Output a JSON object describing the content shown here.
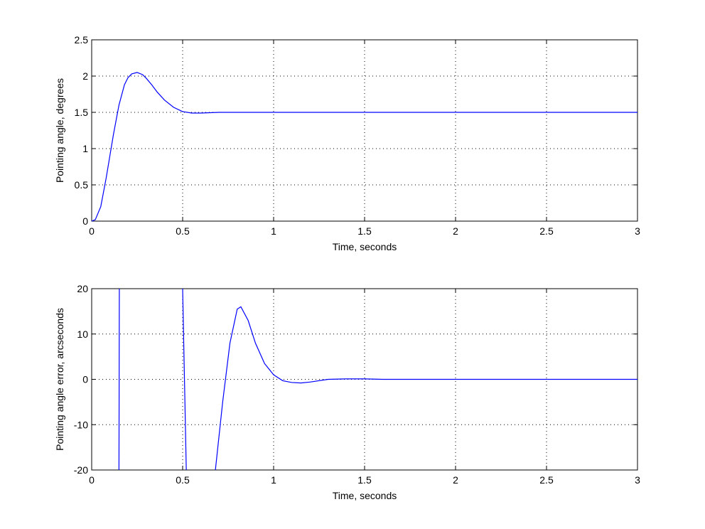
{
  "chart_data": [
    {
      "type": "line",
      "xlabel": "Time, seconds",
      "ylabel": "Pointing angle, degrees",
      "xlim": [
        0,
        3
      ],
      "ylim": [
        0,
        2.5
      ],
      "xticks": [
        0,
        0.5,
        1,
        1.5,
        2,
        2.5,
        3
      ],
      "yticks": [
        0,
        0.5,
        1,
        1.5,
        2,
        2.5
      ],
      "grid": true,
      "x": [
        0,
        0.02,
        0.05,
        0.08,
        0.1,
        0.12,
        0.15,
        0.18,
        0.2,
        0.22,
        0.25,
        0.28,
        0.3,
        0.33,
        0.36,
        0.4,
        0.45,
        0.5,
        0.55,
        0.6,
        0.7,
        0.8,
        1,
        1.5,
        2,
        2.5,
        3
      ],
      "series": [
        {
          "color": "#0000ff",
          "values": [
            0,
            0.02,
            0.2,
            0.6,
            0.9,
            1.2,
            1.6,
            1.88,
            1.98,
            2.03,
            2.05,
            2.02,
            1.97,
            1.88,
            1.78,
            1.67,
            1.57,
            1.51,
            1.49,
            1.49,
            1.5,
            1.5,
            1.5,
            1.5,
            1.5,
            1.5,
            1.5
          ]
        }
      ]
    },
    {
      "type": "line",
      "xlabel": "Time, seconds",
      "ylabel": "Pointing angle error, arcseconds",
      "xlim": [
        0,
        3
      ],
      "ylim": [
        -20,
        20
      ],
      "xticks": [
        0,
        0.5,
        1,
        1.5,
        2,
        2.5,
        3
      ],
      "yticks": [
        -20,
        -10,
        0,
        10,
        20
      ],
      "grid": true,
      "x": [
        0.15,
        0.152,
        0.3,
        0.5,
        0.52,
        0.6,
        0.68,
        0.72,
        0.76,
        0.8,
        0.82,
        0.86,
        0.9,
        0.95,
        1.0,
        1.05,
        1.1,
        1.15,
        1.2,
        1.3,
        1.4,
        1.5,
        1.6,
        2,
        3
      ],
      "series": [
        {
          "color": "#0000ff",
          "values": [
            -20,
            20,
            null,
            20,
            -20,
            null,
            -20,
            -5,
            8,
            15.5,
            16,
            13,
            8,
            3.5,
            1,
            -0.3,
            -0.7,
            -0.8,
            -0.6,
            0,
            0.1,
            0.1,
            0,
            0,
            0
          ]
        }
      ]
    }
  ]
}
